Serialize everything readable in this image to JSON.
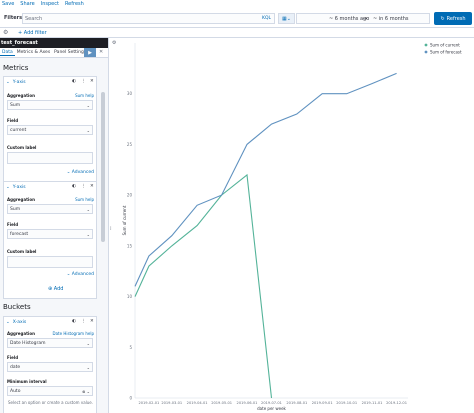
{
  "topnav": {
    "items": [
      "Save",
      "Share",
      "Inspect",
      "Refresh"
    ]
  },
  "query": {
    "filters_label": "Filters",
    "search_placeholder": "Search",
    "kql": "KQL",
    "date_start": "~ 6 months ago",
    "arrow": "→",
    "date_end": "~ in 6 months",
    "refresh_label": "Refresh"
  },
  "filter_row": {
    "add_filter": "+ Add filter"
  },
  "sidebar": {
    "index_title": "test_forecast",
    "tabs": [
      "Data",
      "Metrics & Axes",
      "Panel Settings"
    ],
    "metrics_title": "Metrics",
    "metric1": {
      "header": "Y-axis",
      "aggregation_label": "Aggregation",
      "help": "Sum help",
      "aggregation": "Sum",
      "field_label": "Field",
      "field": "current",
      "custom_label": "Custom label",
      "advanced": "Advanced"
    },
    "metric2": {
      "header": "Y-axis",
      "aggregation_label": "Aggregation",
      "help": "Sum help",
      "aggregation": "Sum",
      "field_label": "Field",
      "field": "forecast",
      "custom_label": "Custom label",
      "advanced": "Advanced"
    },
    "add_label": "Add",
    "buckets_title": "Buckets",
    "bucket": {
      "header": "X-axis",
      "aggregation_label": "Aggregation",
      "help": "Date Histogram help",
      "aggregation": "Date Histogram",
      "field_label": "Field",
      "field": "date",
      "interval_label": "Minimum interval",
      "interval": "Auto",
      "hint": "Select an option or create a custom value."
    }
  },
  "chart_data": {
    "type": "line",
    "x": [
      "2019-02-01",
      "2019-03-01",
      "2019-04-01",
      "2019-05-01",
      "2019-06-01",
      "2019-07-01",
      "2019-08-01",
      "2019-09-01",
      "2019-10-01",
      "2019-11-01",
      "2019-12-01"
    ],
    "xtick_labels": [
      "2019-02-01",
      "2019-03-01",
      "2019-04-01",
      "2019-05-01",
      "2019-06-01",
      "2019-07-01",
      "2019-08-01",
      "2019-09-01",
      "2019-10-01",
      "2019-11-01",
      "2019-12-01"
    ],
    "yticks": [
      0,
      5,
      10,
      15,
      20,
      25,
      30
    ],
    "ylim": [
      0,
      35
    ],
    "xlabel": "date per week",
    "ylabel": "Sum of current",
    "series": [
      {
        "name": "Sum of current",
        "color": "#54b399",
        "points": [
          [
            "2019-01-15",
            10
          ],
          [
            "2019-02-01",
            13
          ],
          [
            "2019-03-01",
            15
          ],
          [
            "2019-04-01",
            17
          ],
          [
            "2019-05-01",
            20
          ],
          [
            "2019-06-01",
            22
          ],
          [
            "2019-07-01",
            0
          ]
        ]
      },
      {
        "name": "Sum of forecast",
        "color": "#6092c0",
        "points": [
          [
            "2019-01-15",
            11
          ],
          [
            "2019-02-01",
            14
          ],
          [
            "2019-03-01",
            16
          ],
          [
            "2019-04-01",
            19
          ],
          [
            "2019-05-01",
            20
          ],
          [
            "2019-06-01",
            25
          ],
          [
            "2019-07-01",
            27
          ],
          [
            "2019-08-01",
            28
          ],
          [
            "2019-09-01",
            30
          ],
          [
            "2019-10-01",
            30
          ],
          [
            "2019-11-01",
            31
          ],
          [
            "2019-12-01",
            32
          ]
        ]
      }
    ],
    "legend_position": "top-right"
  }
}
